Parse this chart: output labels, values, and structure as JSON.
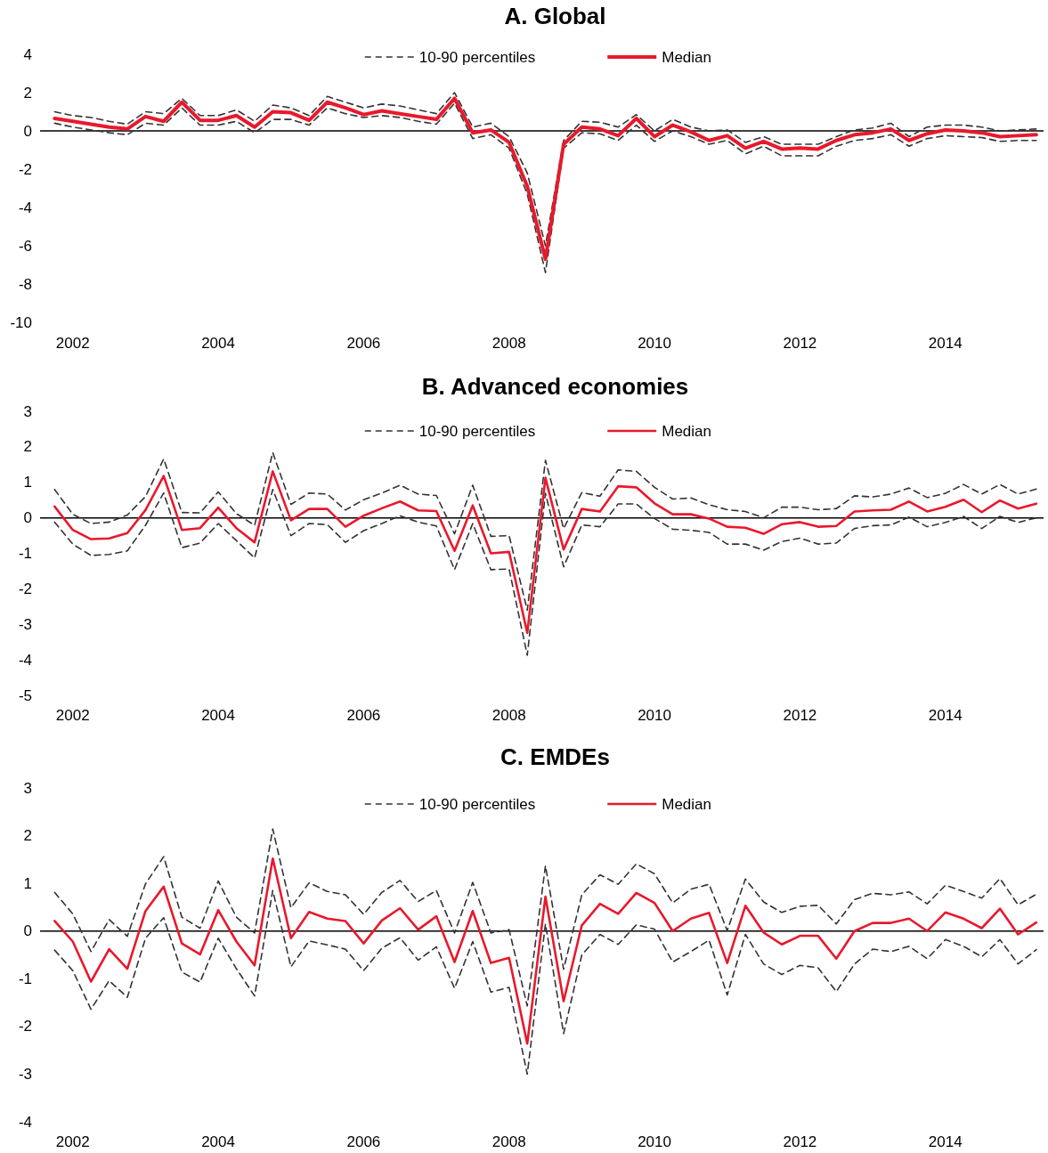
{
  "chart_data": [
    {
      "type": "line",
      "title": "A. Global",
      "legend": "top",
      "xlim": [
        2001.55,
        2015.35
      ],
      "ylim": [
        -10,
        4
      ],
      "yticks": [
        4,
        2,
        0,
        -2,
        -4,
        -6,
        -8,
        -10
      ],
      "xticks": [
        2002,
        2004,
        2006,
        2008,
        2010,
        2012,
        2014
      ],
      "x": [
        2001.75,
        2002,
        2002.25,
        2002.5,
        2002.75,
        2003,
        2003.25,
        2003.5,
        2003.75,
        2004,
        2004.25,
        2004.5,
        2004.75,
        2005,
        2005.25,
        2005.5,
        2005.75,
        2006,
        2006.25,
        2006.5,
        2006.75,
        2007,
        2007.25,
        2007.5,
        2007.75,
        2008,
        2008.25,
        2008.5,
        2008.75,
        2009,
        2009.25,
        2009.5,
        2009.75,
        2010,
        2010.25,
        2010.5,
        2010.75,
        2011,
        2011.25,
        2011.5,
        2011.75,
        2012,
        2012.25,
        2012.5,
        2012.75,
        2013,
        2013.25,
        2013.5,
        2013.75,
        2014,
        2014.25,
        2014.5,
        2014.75,
        2015,
        2015.25
      ],
      "ref_lines": [
        {
          "axis": "y",
          "value": 0,
          "color": "#000000"
        }
      ],
      "series": [
        {
          "name": "10-90 percentiles",
          "color": "#333333",
          "line_style": "dashed",
          "values": [
            1.0,
            0.8,
            0.7,
            0.5,
            0.35,
            1.0,
            0.9,
            1.7,
            0.8,
            0.8,
            1.1,
            0.5,
            1.35,
            1.2,
            0.8,
            1.8,
            1.5,
            1.2,
            1.4,
            1.3,
            1.1,
            0.9,
            2.0,
            0.2,
            0.4,
            -0.3,
            -2.2,
            -6.0,
            -0.5,
            0.5,
            0.45,
            0.2,
            0.85,
            0.0,
            0.6,
            0.2,
            0.0,
            0.05,
            -0.6,
            -0.3,
            -0.7,
            -0.7,
            -0.7,
            -0.3,
            0.05,
            0.15,
            0.4,
            -0.3,
            0.2,
            0.3,
            0.3,
            0.2,
            0.0,
            0.05,
            0.1
          ]
        },
        {
          "color": "#333333",
          "line_style": "dashed",
          "values": [
            0.4,
            0.2,
            0.05,
            -0.1,
            -0.2,
            0.4,
            0.3,
            1.2,
            0.3,
            0.3,
            0.5,
            -0.1,
            0.6,
            0.6,
            0.3,
            1.2,
            0.9,
            0.7,
            0.8,
            0.7,
            0.5,
            0.35,
            1.45,
            -0.4,
            -0.2,
            -0.9,
            -3.3,
            -7.4,
            -0.9,
            -0.1,
            -0.15,
            -0.5,
            0.3,
            -0.55,
            0.0,
            -0.3,
            -0.7,
            -0.5,
            -1.2,
            -0.8,
            -1.3,
            -1.3,
            -1.3,
            -0.8,
            -0.5,
            -0.4,
            -0.2,
            -0.8,
            -0.4,
            -0.25,
            -0.3,
            -0.35,
            -0.55,
            -0.5,
            -0.5
          ]
        },
        {
          "name": "Median",
          "color": "#e8192c",
          "line_style": "solid",
          "values": [
            0.65,
            0.5,
            0.35,
            0.2,
            0.1,
            0.75,
            0.5,
            1.5,
            0.55,
            0.55,
            0.8,
            0.2,
            1.0,
            0.95,
            0.55,
            1.5,
            1.2,
            0.85,
            1.05,
            0.9,
            0.75,
            0.6,
            1.7,
            -0.1,
            0.05,
            -0.6,
            -2.9,
            -6.7,
            -0.7,
            0.2,
            0.1,
            -0.25,
            0.65,
            -0.3,
            0.3,
            -0.05,
            -0.5,
            -0.25,
            -0.9,
            -0.55,
            -0.95,
            -0.9,
            -0.95,
            -0.5,
            -0.2,
            -0.1,
            0.1,
            -0.5,
            -0.15,
            0.05,
            0.0,
            -0.1,
            -0.3,
            -0.25,
            -0.2
          ]
        }
      ]
    },
    {
      "type": "line",
      "title": "B. Advanced economies",
      "legend": "top",
      "xlim": [
        2001.55,
        2015.35
      ],
      "ylim": [
        -5,
        3
      ],
      "yticks": [
        3,
        2,
        1,
        0,
        -1,
        -2,
        -3,
        -4,
        -5
      ],
      "xticks": [
        2002,
        2004,
        2006,
        2008,
        2010,
        2012,
        2014
      ],
      "x": [
        2001.75,
        2002,
        2002.25,
        2002.5,
        2002.75,
        2003,
        2003.25,
        2003.5,
        2003.75,
        2004,
        2004.25,
        2004.5,
        2004.75,
        2005,
        2005.25,
        2005.5,
        2005.75,
        2006,
        2006.25,
        2006.5,
        2006.75,
        2007,
        2007.25,
        2007.5,
        2007.75,
        2008,
        2008.25,
        2008.5,
        2008.75,
        2009,
        2009.25,
        2009.5,
        2009.75,
        2010,
        2010.25,
        2010.5,
        2010.75,
        2011,
        2011.25,
        2011.5,
        2011.75,
        2012,
        2012.25,
        2012.5,
        2012.75,
        2013,
        2013.25,
        2013.5,
        2013.75,
        2014,
        2014.25,
        2014.5,
        2014.75,
        2015,
        2015.25
      ],
      "ref_lines": [
        {
          "axis": "y",
          "value": 0,
          "color": "#000000"
        }
      ],
      "series": [
        {
          "name": "10-90 percentiles",
          "color": "#333333",
          "line_style": "dashed",
          "values": [
            0.8,
            0.1,
            -0.16,
            -0.12,
            0.08,
            0.6,
            1.66,
            0.15,
            0.14,
            0.73,
            0.12,
            -0.21,
            1.84,
            0.38,
            0.7,
            0.67,
            0.22,
            0.51,
            0.7,
            0.92,
            0.67,
            0.63,
            -0.45,
            0.92,
            -0.52,
            -0.5,
            -2.6,
            1.62,
            -0.3,
            0.71,
            0.61,
            1.35,
            1.31,
            0.86,
            0.53,
            0.56,
            0.37,
            0.23,
            0.18,
            0.0,
            0.3,
            0.3,
            0.23,
            0.26,
            0.62,
            0.59,
            0.67,
            0.84,
            0.57,
            0.69,
            0.94,
            0.67,
            0.94,
            0.67,
            0.81
          ]
        },
        {
          "color": "#333333",
          "line_style": "dashed",
          "values": [
            -0.12,
            -0.74,
            -1.06,
            -1.03,
            -0.93,
            -0.21,
            0.7,
            -0.84,
            -0.71,
            -0.16,
            -0.64,
            -1.13,
            0.8,
            -0.5,
            -0.16,
            -0.19,
            -0.69,
            -0.36,
            -0.16,
            0.06,
            -0.12,
            -0.23,
            -1.46,
            -0.16,
            -1.46,
            -1.44,
            -3.87,
            0.69,
            -1.38,
            -0.2,
            -0.25,
            0.39,
            0.39,
            -0.02,
            -0.32,
            -0.35,
            -0.41,
            -0.74,
            -0.74,
            -0.91,
            -0.67,
            -0.57,
            -0.74,
            -0.71,
            -0.3,
            -0.22,
            -0.2,
            0.02,
            -0.25,
            -0.13,
            0.04,
            -0.3,
            0.04,
            -0.13,
            0.0
          ]
        },
        {
          "name": "Median",
          "color": "#e8192c",
          "line_style": "solid",
          "values": [
            0.32,
            -0.34,
            -0.6,
            -0.58,
            -0.43,
            0.22,
            1.18,
            -0.34,
            -0.29,
            0.29,
            -0.29,
            -0.69,
            1.31,
            -0.07,
            0.25,
            0.25,
            -0.25,
            0.06,
            0.27,
            0.46,
            0.21,
            0.19,
            -0.93,
            0.35,
            -1.0,
            -0.96,
            -3.24,
            1.13,
            -0.89,
            0.25,
            0.18,
            0.89,
            0.86,
            0.41,
            0.1,
            0.1,
            -0.02,
            -0.25,
            -0.28,
            -0.45,
            -0.18,
            -0.12,
            -0.25,
            -0.23,
            0.18,
            0.21,
            0.23,
            0.46,
            0.18,
            0.31,
            0.51,
            0.16,
            0.49,
            0.26,
            0.4
          ]
        }
      ]
    },
    {
      "type": "line",
      "title": "C. EMDEs",
      "legend": "top",
      "xlim": [
        2001.55,
        2015.35
      ],
      "ylim": [
        -4,
        3
      ],
      "yticks": [
        3,
        2,
        1,
        0,
        -1,
        -2,
        -3,
        -4
      ],
      "xticks": [
        2002,
        2004,
        2006,
        2008,
        2010,
        2012,
        2014
      ],
      "x": [
        2001.75,
        2002,
        2002.25,
        2002.5,
        2002.75,
        2003,
        2003.25,
        2003.5,
        2003.75,
        2004,
        2004.25,
        2004.5,
        2004.75,
        2005,
        2005.25,
        2005.5,
        2005.75,
        2006,
        2006.25,
        2006.5,
        2006.75,
        2007,
        2007.25,
        2007.5,
        2007.75,
        2008,
        2008.25,
        2008.5,
        2008.75,
        2009,
        2009.25,
        2009.5,
        2009.75,
        2010,
        2010.25,
        2010.5,
        2010.75,
        2011,
        2011.25,
        2011.5,
        2011.75,
        2012,
        2012.25,
        2012.5,
        2012.75,
        2013,
        2013.25,
        2013.5,
        2013.75,
        2014,
        2014.25,
        2014.5,
        2014.75,
        2015,
        2015.25
      ],
      "ref_lines": [
        {
          "axis": "y",
          "value": 0,
          "color": "#000000"
        }
      ],
      "series": [
        {
          "name": "10-90 percentiles",
          "color": "#333333",
          "line_style": "dashed",
          "values": [
            0.81,
            0.36,
            -0.43,
            0.24,
            -0.11,
            0.99,
            1.56,
            0.29,
            0.06,
            1.05,
            0.29,
            -0.04,
            2.14,
            0.49,
            1.01,
            0.83,
            0.76,
            0.35,
            0.81,
            1.06,
            0.62,
            0.85,
            -0.04,
            1.02,
            -0.04,
            0.03,
            -1.57,
            1.37,
            -0.8,
            0.76,
            1.18,
            0.98,
            1.41,
            1.2,
            0.59,
            0.88,
            0.98,
            0.01,
            1.09,
            0.61,
            0.39,
            0.52,
            0.54,
            0.15,
            0.66,
            0.79,
            0.76,
            0.82,
            0.57,
            0.96,
            0.83,
            0.69,
            1.1,
            0.55,
            0.77
          ]
        },
        {
          "color": "#333333",
          "line_style": "dashed",
          "values": [
            -0.4,
            -0.83,
            -1.64,
            -1.04,
            -1.39,
            -0.15,
            0.28,
            -0.86,
            -1.07,
            -0.15,
            -0.79,
            -1.36,
            0.85,
            -0.75,
            -0.21,
            -0.29,
            -0.38,
            -0.83,
            -0.36,
            -0.14,
            -0.61,
            -0.33,
            -1.2,
            -0.22,
            -1.28,
            -1.18,
            -3.0,
            0.15,
            -2.15,
            -0.5,
            -0.07,
            -0.28,
            0.13,
            0.04,
            -0.65,
            -0.43,
            -0.19,
            -1.34,
            -0.07,
            -0.69,
            -0.91,
            -0.72,
            -0.77,
            -1.27,
            -0.69,
            -0.38,
            -0.43,
            -0.32,
            -0.58,
            -0.18,
            -0.32,
            -0.54,
            -0.18,
            -0.69,
            -0.39
          ]
        },
        {
          "name": "Median",
          "color": "#e8192c",
          "line_style": "solid",
          "values": [
            0.21,
            -0.22,
            -1.06,
            -0.38,
            -0.79,
            0.42,
            0.93,
            -0.26,
            -0.49,
            0.44,
            -0.22,
            -0.72,
            1.52,
            -0.15,
            0.4,
            0.26,
            0.21,
            -0.26,
            0.22,
            0.48,
            0.03,
            0.31,
            -0.65,
            0.42,
            -0.67,
            -0.56,
            -2.36,
            0.72,
            -1.47,
            0.12,
            0.57,
            0.36,
            0.8,
            0.59,
            0.0,
            0.26,
            0.38,
            -0.67,
            0.53,
            -0.03,
            -0.28,
            -0.1,
            -0.1,
            -0.58,
            0.0,
            0.17,
            0.17,
            0.26,
            0.0,
            0.39,
            0.26,
            0.06,
            0.47,
            -0.07,
            0.18
          ]
        }
      ]
    }
  ]
}
